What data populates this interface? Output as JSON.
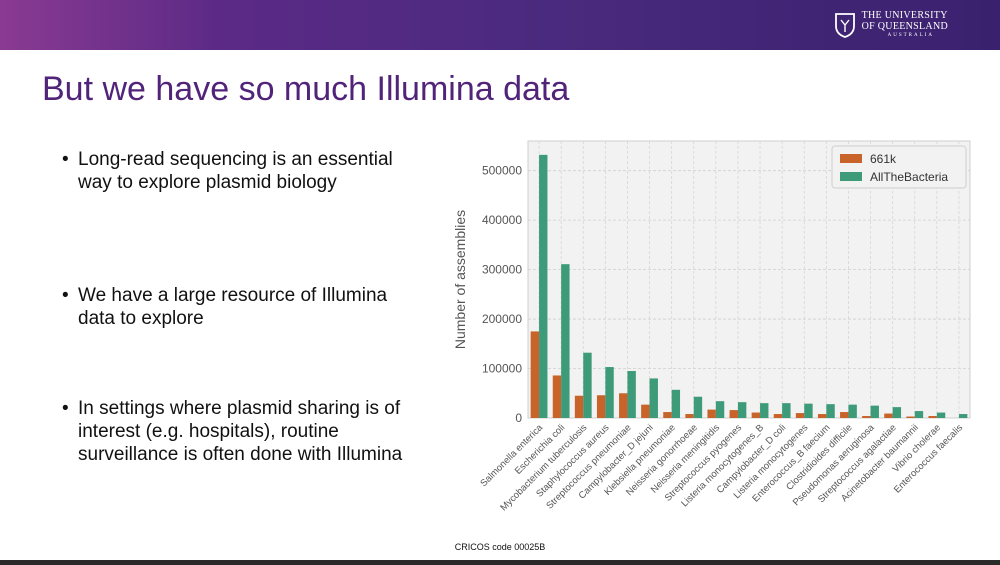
{
  "header": {
    "logo_line1": "THE UNIVERSITY",
    "logo_line2": "OF QUEENSLAND",
    "logo_line3": "AUSTRALIA",
    "colors": {
      "banner_start": "#8a3a92",
      "banner_end": "#3a216e"
    }
  },
  "slide": {
    "title": "But we have so much Illumina data",
    "bullets": [
      "Long-read sequencing is an essential way to explore plasmid biology",
      "We have a large resource of Illumina data to explore",
      "In settings where plasmid sharing is of interest (e.g. hospitals), routine surveillance is often done with Illumina"
    ],
    "footer": "CRICOS code 00025B"
  },
  "chart_data": {
    "type": "bar",
    "ylabel": "Number of assemblies",
    "ylim": [
      0,
      560000
    ],
    "yticks": [
      0,
      100000,
      200000,
      300000,
      400000,
      500000
    ],
    "grid": true,
    "legend_position": "top-right",
    "categories": [
      "Salmonella enterica",
      "Escherichia coli",
      "Mycobacterium tuberculosis",
      "Staphylococcus aureus",
      "Streptococcus pneumoniae",
      "Campylobacter_D jejuni",
      "Klebsiella pneumoniae",
      "Neisseria gonorrhoeae",
      "Neisseria meningitidis",
      "Streptococcus pyogenes",
      "Listeria monocytogenes_B",
      "Campylobacter_D coli",
      "Listeria monocytogenes",
      "Enterococcus_B faecium",
      "Clostridioides difficile",
      "Pseudomonas aeruginosa",
      "Streptococcus agalactiae",
      "Acinetobacter baumannii",
      "Vibrio cholerae",
      "Enterococcus faecalis"
    ],
    "series": [
      {
        "name": "661k",
        "color": "#c8632a",
        "values": [
          175000,
          86000,
          45000,
          46000,
          50000,
          27000,
          12000,
          8000,
          17000,
          16000,
          11000,
          8000,
          10000,
          8000,
          12000,
          4000,
          9000,
          3000,
          4000,
          0
        ]
      },
      {
        "name": "AllTheBacteria",
        "color": "#3d9b79",
        "values": [
          532000,
          311000,
          132000,
          103000,
          95000,
          80000,
          57000,
          43000,
          34000,
          32000,
          30000,
          30000,
          29000,
          28000,
          27000,
          25000,
          22000,
          14000,
          11000,
          8000
        ]
      }
    ]
  }
}
